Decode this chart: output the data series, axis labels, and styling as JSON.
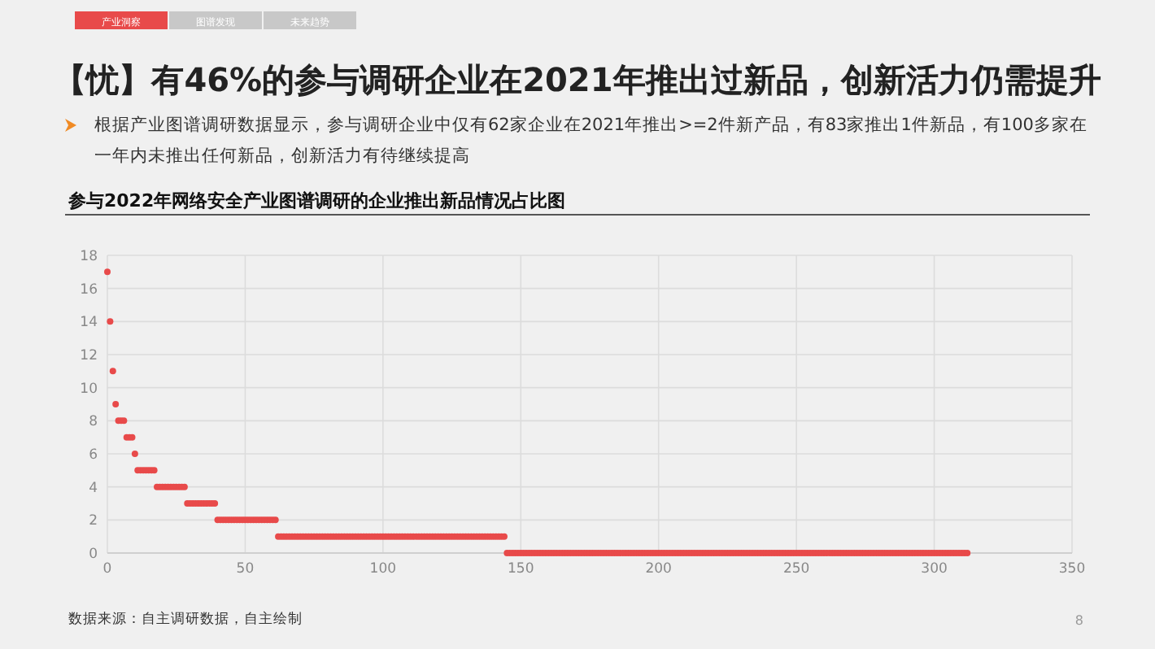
{
  "chart_data": {
    "type": "scatter",
    "title": "【忧】有46%的参与调研企业在2021年推出过新品，创新活力仍需提升",
    "subtitle": "参与2022年网络安全产业图谱调研的企业推出新品情况占比图",
    "annotations": [
      "产业洞察",
      "图谱发现",
      "未来趋势",
      "根据产业图谱调研数据显示，参与调研企业中仅有62家企业在2021年推出>=2件新产品，有83家推出1件新品，有100多家在一年内未推出任何新品，创新活力有待继续提高",
      "数据来源：自主调研数据，自主绘制",
      "8"
    ],
    "x": [
      0,
      1,
      2,
      3,
      4,
      5,
      6,
      7,
      8,
      9,
      10,
      11,
      12,
      13,
      14,
      15,
      16,
      17,
      18,
      19,
      20,
      21,
      22,
      23,
      24,
      25,
      26,
      27,
      28,
      29,
      30,
      31,
      32,
      33,
      34,
      35,
      36,
      37,
      38,
      39,
      40,
      41,
      42,
      43,
      44,
      45,
      46,
      47,
      48,
      49,
      50,
      51,
      52,
      53,
      54,
      55,
      56,
      57,
      58,
      59,
      60,
      61,
      62,
      63,
      64,
      65,
      66,
      67,
      68,
      69,
      70,
      71,
      72,
      73,
      74,
      75,
      76,
      77,
      78,
      79,
      80,
      81,
      82,
      83,
      84,
      85,
      86,
      87,
      88,
      89,
      90,
      91,
      92,
      93,
      94,
      95,
      96,
      97,
      98,
      99,
      100,
      101,
      102,
      103,
      104,
      105,
      106,
      107,
      108,
      109,
      110,
      111,
      112,
      113,
      114,
      115,
      116,
      117,
      118,
      119,
      120,
      121,
      122,
      123,
      124,
      125,
      126,
      127,
      128,
      129,
      130,
      131,
      132,
      133,
      134,
      135,
      136,
      137,
      138,
      139,
      140,
      141,
      142,
      143,
      144,
      145,
      146,
      147,
      148,
      149,
      150,
      151,
      152,
      153,
      154,
      155,
      156,
      157,
      158,
      159,
      160,
      161,
      162,
      163,
      164,
      165,
      166,
      167,
      168,
      169,
      170,
      171,
      172,
      173,
      174,
      175,
      176,
      177,
      178,
      179,
      180,
      181,
      182,
      183,
      184,
      185,
      186,
      187,
      188,
      189,
      190,
      191,
      192,
      193,
      194,
      195,
      196,
      197,
      198,
      199,
      200,
      201,
      202,
      203,
      204,
      205,
      206,
      207,
      208,
      209,
      210,
      211,
      212,
      213,
      214,
      215,
      216,
      217,
      218,
      219,
      220,
      221,
      222,
      223,
      224,
      225,
      226,
      227,
      228,
      229,
      230,
      231,
      232,
      233,
      234,
      235,
      236,
      237,
      238,
      239,
      240,
      241,
      242,
      243,
      244,
      245,
      246,
      247,
      248,
      249,
      250,
      251,
      252,
      253,
      254,
      255,
      256,
      257,
      258,
      259,
      260,
      261,
      262,
      263,
      264,
      265,
      266,
      267,
      268,
      269,
      270,
      271,
      272,
      273,
      274,
      275,
      276,
      277,
      278,
      279,
      280,
      281,
      282,
      283,
      284,
      285,
      286,
      287,
      288,
      289,
      290,
      291,
      292,
      293,
      294,
      295,
      296,
      297,
      298,
      299,
      300,
      301,
      302,
      303,
      304,
      305,
      306,
      307,
      308,
      309,
      310,
      311,
      312
    ],
    "values": [
      17,
      14,
      11,
      9,
      8,
      8,
      8,
      7,
      7,
      7,
      6,
      5,
      5,
      5,
      5,
      5,
      5,
      5,
      4,
      4,
      4,
      4,
      4,
      4,
      4,
      4,
      4,
      4,
      4,
      3,
      3,
      3,
      3,
      3,
      3,
      3,
      3,
      3,
      3,
      3,
      2,
      2,
      2,
      2,
      2,
      2,
      2,
      2,
      2,
      2,
      2,
      2,
      2,
      2,
      2,
      2,
      2,
      2,
      2,
      2,
      2,
      2,
      1,
      1,
      1,
      1,
      1,
      1,
      1,
      1,
      1,
      1,
      1,
      1,
      1,
      1,
      1,
      1,
      1,
      1,
      1,
      1,
      1,
      1,
      1,
      1,
      1,
      1,
      1,
      1,
      1,
      1,
      1,
      1,
      1,
      1,
      1,
      1,
      1,
      1,
      1,
      1,
      1,
      1,
      1,
      1,
      1,
      1,
      1,
      1,
      1,
      1,
      1,
      1,
      1,
      1,
      1,
      1,
      1,
      1,
      1,
      1,
      1,
      1,
      1,
      1,
      1,
      1,
      1,
      1,
      1,
      1,
      1,
      1,
      1,
      1,
      1,
      1,
      1,
      1,
      1,
      1,
      1,
      1,
      1,
      0,
      0,
      0,
      0,
      0,
      0,
      0,
      0,
      0,
      0,
      0,
      0,
      0,
      0,
      0,
      0,
      0,
      0,
      0,
      0,
      0,
      0,
      0,
      0,
      0,
      0,
      0,
      0,
      0,
      0,
      0,
      0,
      0,
      0,
      0,
      0,
      0,
      0,
      0,
      0,
      0,
      0,
      0,
      0,
      0,
      0,
      0,
      0,
      0,
      0,
      0,
      0,
      0,
      0,
      0,
      0,
      0,
      0,
      0,
      0,
      0,
      0,
      0,
      0,
      0,
      0,
      0,
      0,
      0,
      0,
      0,
      0,
      0,
      0,
      0,
      0,
      0,
      0,
      0,
      0,
      0,
      0,
      0,
      0,
      0,
      0,
      0,
      0,
      0,
      0,
      0,
      0,
      0,
      0,
      0,
      0,
      0,
      0,
      0,
      0,
      0,
      0,
      0,
      0,
      0,
      0,
      0,
      0,
      0,
      0,
      0,
      0,
      0,
      0,
      0,
      0,
      0,
      0,
      0,
      0,
      0,
      0,
      0,
      0,
      0,
      0,
      0,
      0,
      0,
      0,
      0,
      0,
      0,
      0,
      0,
      0,
      0,
      0,
      0,
      0,
      0,
      0,
      0,
      0,
      0,
      0,
      0,
      0,
      0,
      0,
      0,
      0,
      0,
      0,
      0,
      0,
      0,
      0,
      0,
      0,
      0,
      0,
      0,
      0,
      0,
      0,
      0,
      0
    ],
    "color": "#e84a4a",
    "marker": "circle",
    "xlim": [
      0,
      350
    ],
    "xticks": [
      0,
      50,
      100,
      150,
      200,
      250,
      300,
      350
    ],
    "ylim": [
      0,
      18
    ],
    "yticks": [
      0,
      2,
      4,
      6,
      8,
      10,
      12,
      14,
      16,
      18
    ],
    "grid": true
  }
}
